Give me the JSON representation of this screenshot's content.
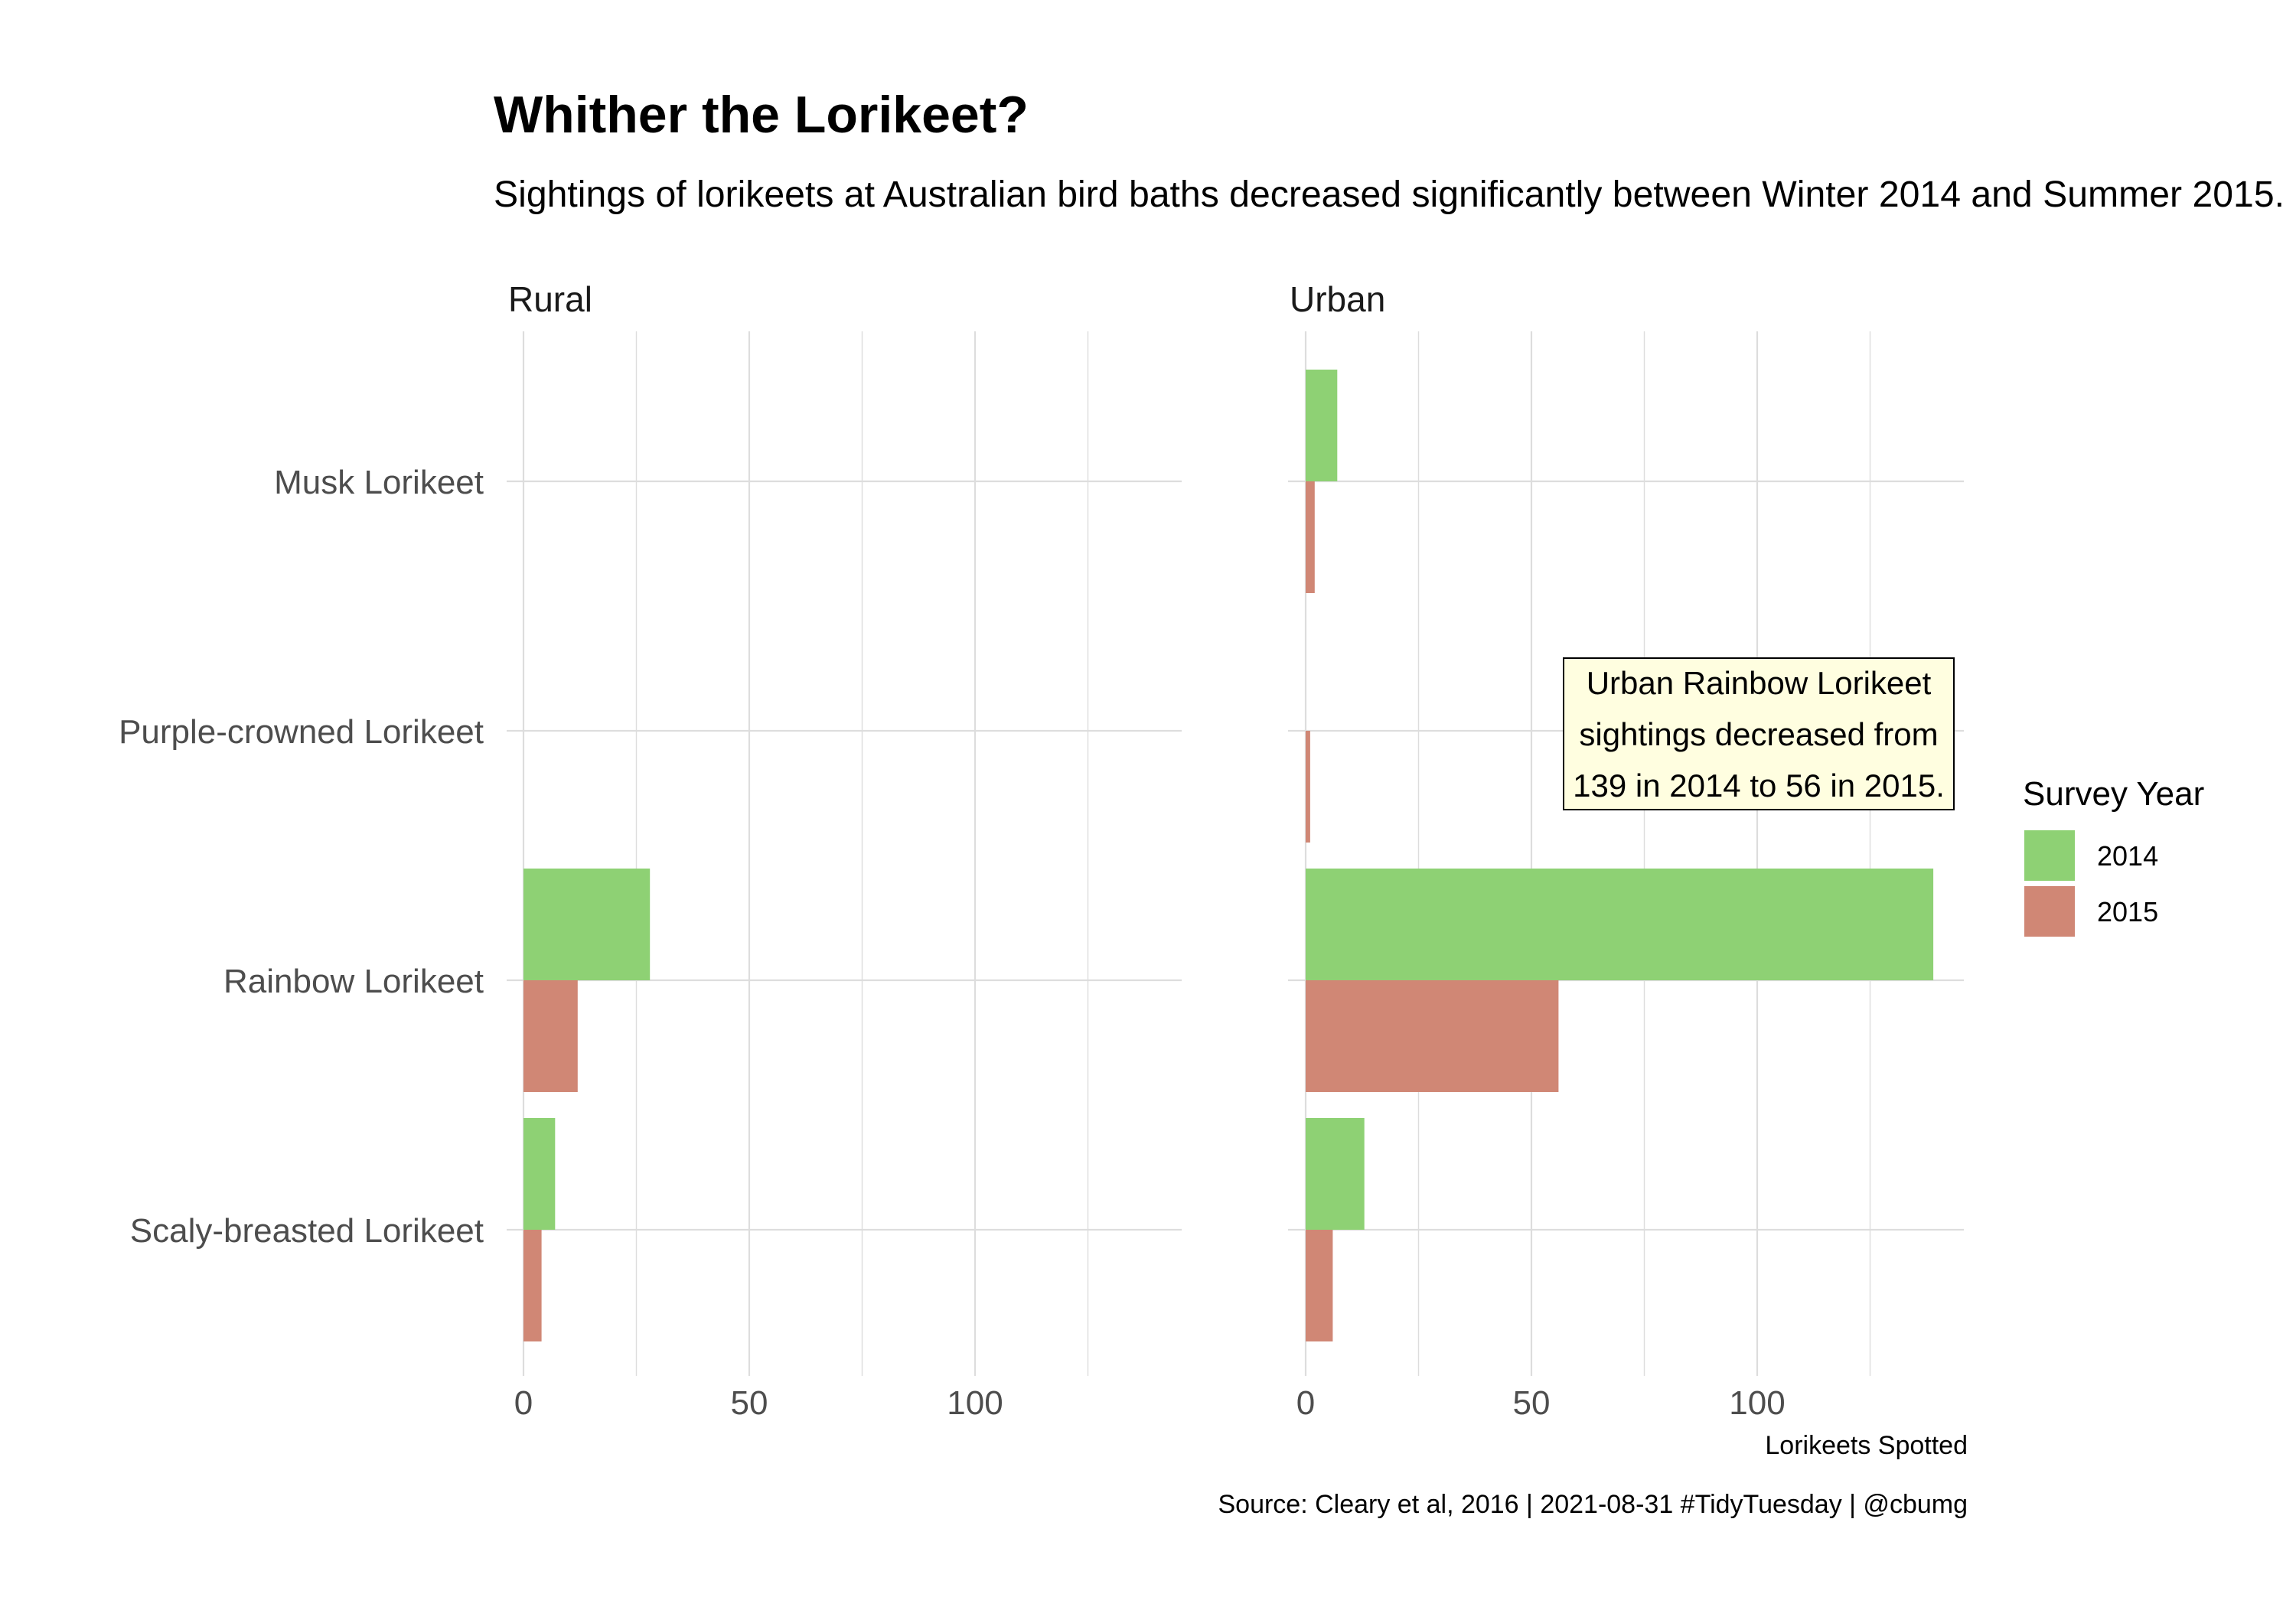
{
  "title": "Whither the Lorikeet?",
  "subtitle": "Sightings of lorikeets at Australian bird baths decreased significantly between Winter 2014 and Summer 2015.",
  "caption": "Source: Cleary et al, 2016 | 2021-08-31 #TidyTuesday | @cbumg",
  "colors": {
    "2014": "#8ed174",
    "2015": "#d08775",
    "grid": "#dddddd"
  },
  "chart_data": {
    "type": "bar",
    "orientation": "horizontal",
    "title": "Whither the Lorikeet?",
    "xlabel": "Lorikeets Spotted",
    "ylabel": "",
    "xlim": [
      0,
      146
    ],
    "xticks": [
      "0",
      "50",
      "100"
    ],
    "categories": [
      "Musk Lorikeet",
      "Purple-crowned Lorikeet",
      "Rainbow Lorikeet",
      "Scaly-breasted Lorikeet"
    ],
    "legend": {
      "title": "Survey Year",
      "entries": [
        "2014",
        "2015"
      ],
      "position": "right"
    },
    "grid": true,
    "panels": [
      {
        "name": "Rural",
        "series": [
          {
            "name": "2014",
            "values": [
              0,
              0,
              28,
              7
            ]
          },
          {
            "name": "2015",
            "values": [
              0,
              0,
              12,
              4
            ]
          }
        ]
      },
      {
        "name": "Urban",
        "series": [
          {
            "name": "2014",
            "values": [
              7,
              0,
              139,
              13
            ]
          },
          {
            "name": "2015",
            "values": [
              2,
              1,
              56,
              6
            ]
          }
        ]
      }
    ],
    "annotation": {
      "panel": "Urban",
      "lines": [
        "Urban Rainbow Lorikeet",
        "sightings decreased from",
        "139 in 2014 to 56 in 2015."
      ]
    }
  }
}
